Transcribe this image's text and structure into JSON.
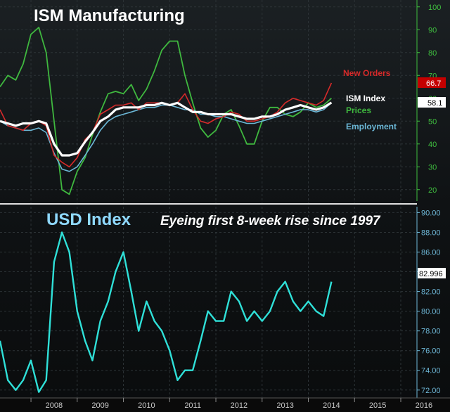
{
  "top_panel": {
    "title": "ISM Manufacturing",
    "series_labels": {
      "new_orders": "New Orders",
      "ism_index": "ISM Index",
      "prices": "Prices",
      "employment": "Employment"
    },
    "last_values": {
      "new_orders": "66.7",
      "ism_index": "58.1"
    }
  },
  "bottom_panel": {
    "title": "USD Index",
    "annotation": "Eyeing first 8-week rise since 1997",
    "last_value": "82.996"
  },
  "colors": {
    "new_orders": "#d62a2a",
    "ism_index": "#ffffff",
    "prices": "#3fb83f",
    "employment": "#6bb7d6",
    "usd": "#2fe0d8",
    "right_axis_top": "#3fbf3f",
    "right_axis_bottom": "#6fb9d9",
    "badge_red": "#c40000",
    "badge_white": "#ffffff",
    "badge_usd": "#ffffff"
  },
  "chart_data": [
    {
      "type": "line",
      "title": "ISM Manufacturing",
      "ylim": [
        15,
        103
      ],
      "yticks": [
        20,
        30,
        40,
        50,
        60,
        70,
        80,
        90,
        100
      ],
      "x": [
        2007.33,
        2007.5,
        2007.67,
        2007.83,
        2008.0,
        2008.17,
        2008.33,
        2008.5,
        2008.67,
        2008.83,
        2009.0,
        2009.17,
        2009.33,
        2009.5,
        2009.67,
        2009.83,
        2010.0,
        2010.17,
        2010.33,
        2010.5,
        2010.67,
        2010.83,
        2011.0,
        2011.17,
        2011.33,
        2011.5,
        2011.67,
        2011.83,
        2012.0,
        2012.17,
        2012.33,
        2012.5,
        2012.67,
        2012.83,
        2013.0,
        2013.17,
        2013.33,
        2013.5,
        2013.67,
        2013.83,
        2014.0,
        2014.17,
        2014.33,
        2014.5
      ],
      "series": [
        {
          "name": "New Orders",
          "values": [
            55,
            48,
            47,
            46,
            49,
            50,
            48,
            35,
            32,
            30,
            34,
            42,
            45,
            53,
            55,
            57,
            57,
            58,
            55,
            58,
            58,
            58,
            57,
            58,
            62,
            55,
            50,
            49,
            51,
            52,
            54,
            53,
            50,
            50,
            51,
            52,
            54,
            58,
            60,
            59,
            58,
            57,
            59,
            66.7
          ]
        },
        {
          "name": "ISM Index",
          "values": [
            50,
            49,
            48,
            49,
            49,
            50,
            49,
            40,
            35,
            35,
            36,
            41,
            45,
            50,
            52,
            55,
            56,
            56,
            56,
            57,
            57,
            58,
            57,
            58,
            56,
            54,
            54,
            53,
            53,
            53,
            53,
            52,
            51,
            51,
            52,
            52,
            53,
            55,
            56,
            57,
            56,
            55,
            56,
            58.1
          ]
        },
        {
          "name": "Prices",
          "values": [
            65,
            70,
            68,
            75,
            88,
            91,
            80,
            50,
            20,
            18,
            28,
            34,
            44,
            54,
            62,
            63,
            62,
            66,
            59,
            64,
            72,
            81,
            85,
            85,
            70,
            58,
            47,
            43,
            46,
            53,
            55,
            48,
            40,
            40,
            50,
            56,
            56,
            53,
            52,
            54,
            58,
            56,
            57,
            60
          ]
        },
        {
          "name": "Employment",
          "values": [
            50,
            48,
            47,
            46,
            46,
            47,
            45,
            36,
            29,
            28,
            30,
            35,
            40,
            46,
            50,
            52,
            53,
            54,
            55,
            56,
            56,
            57,
            57,
            56,
            55,
            55,
            53,
            53,
            52,
            52,
            51,
            50,
            49,
            49,
            50,
            51,
            52,
            53,
            54,
            55,
            55,
            54,
            55,
            58
          ]
        }
      ]
    },
    {
      "type": "line",
      "title": "USD Index",
      "ylim": [
        71.2,
        90.6
      ],
      "yticks": [
        72,
        74,
        76,
        78,
        80,
        82,
        84,
        86,
        88,
        90
      ],
      "xticks": [
        "2008",
        "2009",
        "2010",
        "2011",
        "2012",
        "2013",
        "2014",
        "2015",
        "2016"
      ],
      "x": [
        2007.33,
        2007.5,
        2007.67,
        2007.83,
        2008.0,
        2008.17,
        2008.33,
        2008.5,
        2008.67,
        2008.83,
        2009.0,
        2009.17,
        2009.33,
        2009.5,
        2009.67,
        2009.83,
        2010.0,
        2010.17,
        2010.33,
        2010.5,
        2010.67,
        2010.83,
        2011.0,
        2011.17,
        2011.33,
        2011.5,
        2011.67,
        2011.83,
        2012.0,
        2012.17,
        2012.33,
        2012.5,
        2012.67,
        2012.83,
        2013.0,
        2013.17,
        2013.33,
        2013.5,
        2013.67,
        2013.83,
        2014.0,
        2014.17,
        2014.33,
        2014.5
      ],
      "series": [
        {
          "name": "USD Index",
          "values": [
            77,
            73,
            72,
            73,
            75,
            71.8,
            73,
            85,
            88,
            86,
            80,
            77,
            75,
            79,
            81,
            84,
            86,
            82,
            78,
            81,
            79,
            78,
            76,
            73,
            74,
            74,
            77,
            80,
            79,
            79,
            82,
            81,
            79,
            80,
            79,
            80,
            82,
            83,
            81,
            80,
            81,
            80,
            79.5,
            83
          ]
        }
      ]
    }
  ]
}
